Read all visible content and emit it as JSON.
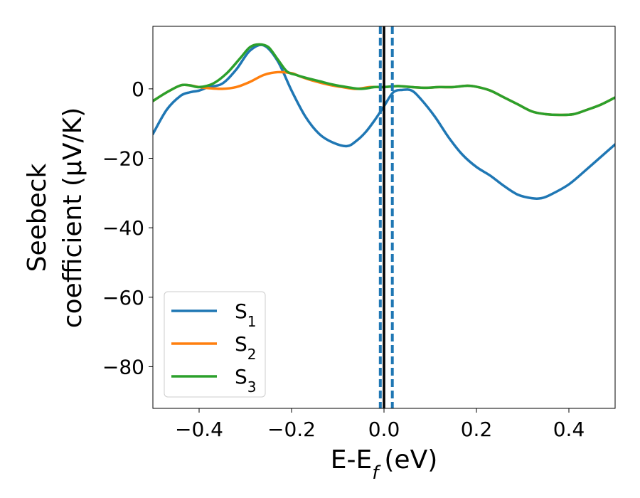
{
  "chart_data": {
    "type": "line",
    "title": "",
    "xlabel": "E-E",
    "xlabel_sub": "f",
    "xlabel_unit": "(eV)",
    "ylabel_line1": "Seebeck",
    "ylabel_line2": "coefficient  (μV/K)",
    "xlim": [
      -0.5,
      0.5
    ],
    "ylim": [
      -92,
      18
    ],
    "xticks": [
      -0.4,
      -0.2,
      0.0,
      0.2,
      0.4
    ],
    "xtick_labels": [
      "−0.4",
      "−0.2",
      "0.0",
      "0.2",
      "0.4"
    ],
    "yticks": [
      0,
      -20,
      -40,
      -60,
      -80
    ],
    "ytick_labels": [
      "0",
      "−20",
      "−40",
      "−60",
      "−80"
    ],
    "legend_location": "lower-left",
    "vlines": [
      {
        "x": 0.0,
        "style": "solid",
        "color": "#000000"
      },
      {
        "x": -0.008,
        "style": "dashed",
        "color": "#1f77b4"
      },
      {
        "x": 0.018,
        "style": "dashed",
        "color": "#1f77b4"
      }
    ],
    "series": [
      {
        "name": "S",
        "sub": "1",
        "color": "#1f77b4",
        "x": [
          -0.5,
          -0.47,
          -0.44,
          -0.42,
          -0.4,
          -0.38,
          -0.35,
          -0.32,
          -0.29,
          -0.26,
          -0.23,
          -0.2,
          -0.17,
          -0.14,
          -0.11,
          -0.08,
          -0.06,
          -0.04,
          -0.02,
          0.0,
          0.02,
          0.04,
          0.06,
          0.08,
          0.11,
          0.14,
          0.17,
          0.2,
          0.23,
          0.26,
          0.29,
          0.32,
          0.34,
          0.36,
          0.4,
          0.44,
          0.47,
          0.5
        ],
        "y": [
          -13,
          -6,
          -2,
          -1,
          -0.5,
          0.5,
          1.5,
          5.5,
          11,
          12.5,
          8,
          -0.5,
          -8,
          -13,
          -15.5,
          -16.5,
          -15,
          -12.5,
          -9,
          -5,
          -1,
          -0.3,
          -0.5,
          -3,
          -8,
          -14,
          -19,
          -22.5,
          -25,
          -28,
          -30.5,
          -31.5,
          -31.5,
          -30.5,
          -27.5,
          -23,
          -19.5,
          -16
        ]
      },
      {
        "name": "S",
        "sub": "2",
        "color": "#ff7f0e",
        "x": [
          -0.5,
          -0.47,
          -0.44,
          -0.42,
          -0.4,
          -0.38,
          -0.35,
          -0.32,
          -0.29,
          -0.26,
          -0.23,
          -0.2,
          -0.18,
          -0.15,
          -0.12,
          -0.09,
          -0.06,
          -0.03,
          0.0,
          0.03,
          0.06,
          0.09,
          0.12,
          0.15,
          0.18,
          0.2,
          0.23,
          0.26,
          0.29,
          0.32,
          0.35,
          0.38,
          0.41,
          0.44,
          0.47,
          0.5
        ],
        "y": [
          -3.5,
          -1,
          1,
          1,
          0.5,
          0.2,
          0,
          0.5,
          2,
          4,
          4.8,
          4.5,
          3.5,
          2.2,
          1.2,
          0.5,
          0,
          0.5,
          0.5,
          0.8,
          0.5,
          0.3,
          0.5,
          0.5,
          0.9,
          0.6,
          -0.5,
          -2.5,
          -4.5,
          -6.5,
          -7.3,
          -7.5,
          -7.3,
          -6,
          -4.5,
          -2.5
        ]
      },
      {
        "name": "S",
        "sub": "3",
        "color": "#2ca02c",
        "x": [
          -0.5,
          -0.47,
          -0.44,
          -0.42,
          -0.4,
          -0.37,
          -0.34,
          -0.31,
          -0.29,
          -0.27,
          -0.25,
          -0.23,
          -0.21,
          -0.19,
          -0.17,
          -0.14,
          -0.11,
          -0.08,
          -0.05,
          -0.02,
          0.0,
          0.03,
          0.06,
          0.09,
          0.12,
          0.15,
          0.18,
          0.2,
          0.23,
          0.26,
          0.29,
          0.32,
          0.35,
          0.38,
          0.41,
          0.44,
          0.47,
          0.5
        ],
        "y": [
          -3.5,
          -1,
          1,
          1,
          0.5,
          1.5,
          4.5,
          9,
          12,
          12.8,
          12,
          8.5,
          5,
          4,
          3.2,
          2.2,
          1.2,
          0.5,
          0,
          0.5,
          0.5,
          0.8,
          0.5,
          0.3,
          0.5,
          0.5,
          0.9,
          0.6,
          -0.5,
          -2.5,
          -4.5,
          -6.5,
          -7.3,
          -7.5,
          -7.3,
          -6,
          -4.5,
          -2.5
        ]
      }
    ]
  }
}
